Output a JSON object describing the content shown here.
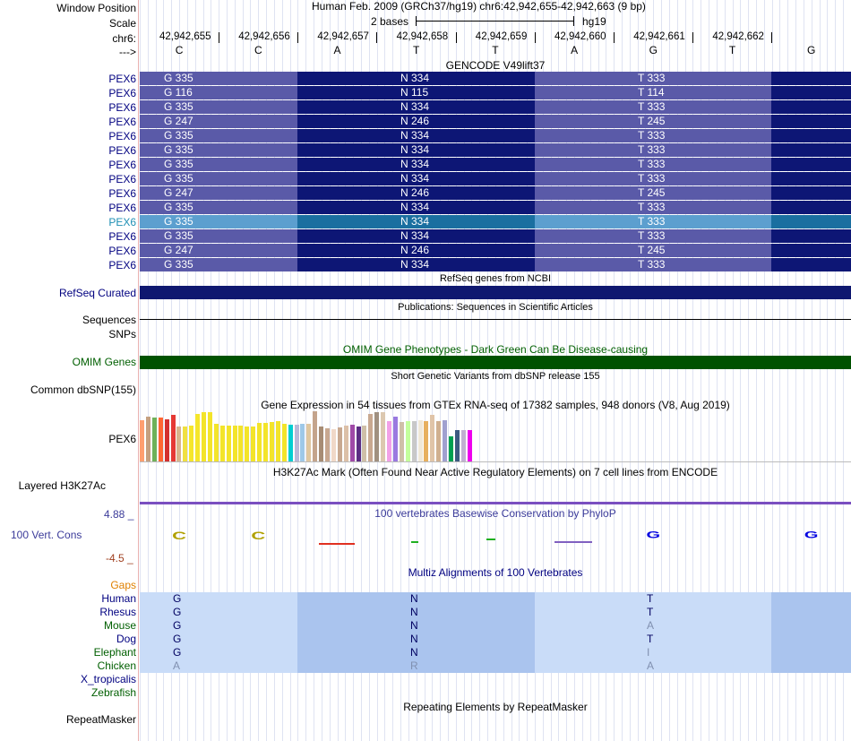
{
  "header": {
    "window_position_label": "Window Position",
    "window_position_value": "Human Feb. 2009 (GRCh37/hg19)   chr6:42,942,655-42,942,663 (9 bp)",
    "scale_label": "Scale",
    "scale_value": "2 bases",
    "scale_assembly": "hg19",
    "chrom_label": "chr6:",
    "strand_label": "--->",
    "coords": [
      "42,942,655",
      "42,942,656",
      "42,942,657",
      "42,942,658",
      "42,942,659",
      "42,942,660",
      "42,942,661",
      "42,942,662"
    ],
    "bases": [
      "C",
      "C",
      "A",
      "T",
      "T",
      "A",
      "G",
      "T",
      "G"
    ]
  },
  "gencode": {
    "title": "GENCODE V49lift37",
    "rows": [
      {
        "name": "PEX6",
        "a": "G 335",
        "b": "N 334",
        "c": "T 333",
        "selected": false
      },
      {
        "name": "PEX6",
        "a": "G 116",
        "b": "N 115",
        "c": "T 114",
        "selected": false
      },
      {
        "name": "PEX6",
        "a": "G 335",
        "b": "N 334",
        "c": "T 333",
        "selected": false
      },
      {
        "name": "PEX6",
        "a": "G 247",
        "b": "N 246",
        "c": "T 245",
        "selected": false
      },
      {
        "name": "PEX6",
        "a": "G 335",
        "b": "N 334",
        "c": "T 333",
        "selected": false
      },
      {
        "name": "PEX6",
        "a": "G 335",
        "b": "N 334",
        "c": "T 333",
        "selected": false
      },
      {
        "name": "PEX6",
        "a": "G 335",
        "b": "N 334",
        "c": "T 333",
        "selected": false
      },
      {
        "name": "PEX6",
        "a": "G 335",
        "b": "N 334",
        "c": "T 333",
        "selected": false
      },
      {
        "name": "PEX6",
        "a": "G 247",
        "b": "N 246",
        "c": "T 245",
        "selected": false
      },
      {
        "name": "PEX6",
        "a": "G 335",
        "b": "N 334",
        "c": "T 333",
        "selected": false
      },
      {
        "name": "PEX6",
        "a": "G 335",
        "b": "N 334",
        "c": "T 333",
        "selected": true
      },
      {
        "name": "PEX6",
        "a": "G 335",
        "b": "N 334",
        "c": "T 333",
        "selected": false
      },
      {
        "name": "PEX6",
        "a": "G 247",
        "b": "N 246",
        "c": "T 245",
        "selected": false
      },
      {
        "name": "PEX6",
        "a": "G 335",
        "b": "N 334",
        "c": "T 333",
        "selected": false
      }
    ]
  },
  "refseq": {
    "title": "RefSeq genes from NCBI",
    "label": "RefSeq Curated"
  },
  "publications": {
    "title": "Publications: Sequences in Scientific Articles",
    "label": "Sequences"
  },
  "snps": {
    "label": "SNPs"
  },
  "omim": {
    "title": "OMIM Gene Phenotypes - Dark Green Can Be Disease-causing",
    "label": "OMIM Genes"
  },
  "dbsnp": {
    "title": "Short Genetic Variants from dbSNP release 155",
    "label": "Common dbSNP(155)"
  },
  "gtex": {
    "title": "Gene Expression in 54 tissues from GTEx RNA-seq of 17382 samples, 948 donors (V8, Aug 2019)",
    "label": "PEX6",
    "levels": [
      0.82,
      0.9,
      0.88,
      0.87,
      0.84,
      0.92,
      0.7,
      0.7,
      0.72,
      0.95,
      0.98,
      0.98,
      0.75,
      0.72,
      0.72,
      0.72,
      0.72,
      0.7,
      0.7,
      0.76,
      0.77,
      0.78,
      0.8,
      0.75,
      0.73,
      0.73,
      0.75,
      0.75,
      1.0,
      0.7,
      0.66,
      0.65,
      0.68,
      0.72,
      0.73,
      0.7,
      0.72,
      0.95,
      0.98,
      0.98,
      0.8,
      0.9,
      0.78,
      0.8,
      0.8,
      0.82,
      0.8,
      0.92,
      0.8,
      0.82,
      0.5,
      0.62,
      0.62,
      0.62
    ],
    "colors": [
      "#ff9f70",
      "#c6a080",
      "#6fb15a",
      "#ff6633",
      "#d32f2f",
      "#e53935",
      "#d8b48c",
      "#f0e040",
      "#f5e62b",
      "#f5e62b",
      "#f3e42a",
      "#f3e42a",
      "#f3e42a",
      "#f3e42a",
      "#f3e42a",
      "#f3e42a",
      "#f3e42a",
      "#f3e42a",
      "#f3e42a",
      "#f3e42a",
      "#f3e42a",
      "#f3e42a",
      "#f3e42a",
      "#f3e42a",
      "#00ced1",
      "#b8b8d8",
      "#9ec8e8",
      "#e0c7a0",
      "#c4a48c",
      "#a78c74",
      "#c8a890",
      "#f0d8c8",
      "#c8a890",
      "#dcc0a8",
      "#a04aa8",
      "#5c2d83",
      "#cfbfa8",
      "#c8a890",
      "#a09080",
      "#dcc8b0",
      "#f2a0e8",
      "#9a79e0",
      "#cfc0a8",
      "#c4ff9c",
      "#c8c8c8",
      "#f0e8d8",
      "#e7b05f",
      "#e0c4a8",
      "#d0b090",
      "#a0a0d0",
      "#00a050",
      "#3c5a80",
      "#c0b0d0",
      "#ee00ee"
    ]
  },
  "h3k27ac": {
    "title": "H3K27Ac Mark (Often Found Near Active Regulatory Elements) on 7 cell lines from ENCODE",
    "label": "Layered H3K27Ac"
  },
  "conservation": {
    "title": "100 vertebrates Basewise Conservation by PhyloP",
    "label": "100 Vert. Cons",
    "max": "4.88 _",
    "min": "-4.5 _",
    "letters": [
      "C",
      "C",
      "",
      "",
      "",
      "",
      "G",
      "",
      "G"
    ]
  },
  "multiz": {
    "title": "Multiz Alignments of 100 Vertebrates",
    "gaps_label": "Gaps",
    "species": [
      {
        "name": "Human",
        "color": "#000080",
        "seq": [
          "G",
          "N",
          "T"
        ],
        "faint": [
          false,
          false,
          false
        ]
      },
      {
        "name": "Rhesus",
        "color": "#000080",
        "seq": [
          "G",
          "N",
          "T"
        ],
        "faint": [
          false,
          false,
          false
        ]
      },
      {
        "name": "Mouse",
        "color": "#005f00",
        "seq": [
          "G",
          "N",
          "A"
        ],
        "faint": [
          false,
          false,
          true
        ]
      },
      {
        "name": "Dog",
        "color": "#000080",
        "seq": [
          "G",
          "N",
          "T"
        ],
        "faint": [
          false,
          false,
          false
        ]
      },
      {
        "name": "Elephant",
        "color": "#005f00",
        "seq": [
          "G",
          "N",
          "I"
        ],
        "faint": [
          false,
          false,
          true
        ]
      },
      {
        "name": "Chicken",
        "color": "#005f00",
        "seq": [
          "A",
          "R",
          "A"
        ],
        "faint": [
          true,
          true,
          true
        ]
      },
      {
        "name": "X_tropicalis",
        "color": "#000080",
        "seq": [],
        "faint": []
      },
      {
        "name": "Zebrafish",
        "color": "#005f00",
        "seq": [],
        "faint": []
      }
    ]
  },
  "repeatmasker": {
    "title": "Repeating Elements by RepeatMasker",
    "label": "RepeatMasker"
  }
}
